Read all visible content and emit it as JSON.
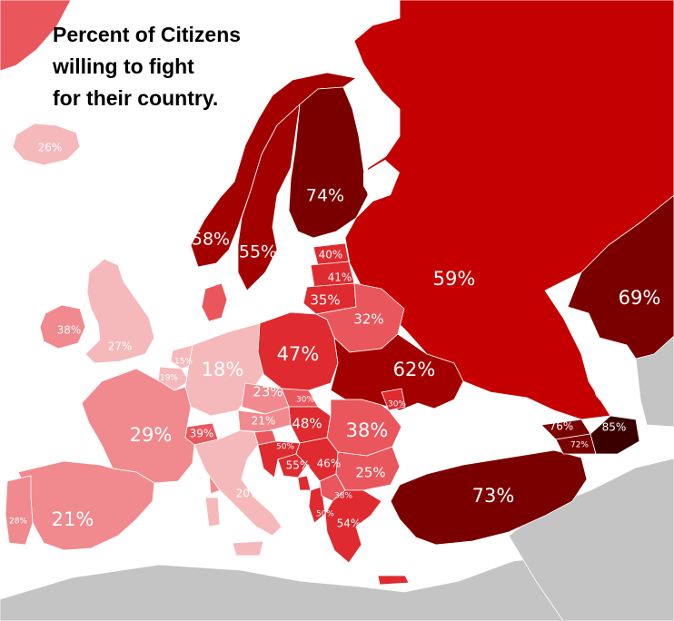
{
  "title_lines": [
    "Percent of Citizens",
    "willing to fight",
    "for their country."
  ],
  "colors": {
    "sea": "#ffffff",
    "no_data": "#c4c4c4",
    "border": "#ffffff",
    "label": "#ffffff",
    "title": "#000000"
  },
  "scale_colors": {
    "very_low": "#f6b9bb",
    "low": "#f08a8e",
    "mid_low": "#e9575d",
    "mid": "#df2a2f",
    "high": "#c40000",
    "very_high": "#a30000",
    "highest": "#7a0000",
    "extreme": "#3a0000"
  },
  "regions": [
    {
      "label": "26%"
    },
    {
      "label": "38%"
    },
    {
      "label": "27%"
    },
    {
      "label": "29%"
    },
    {
      "label": "28%"
    },
    {
      "label": "21%"
    },
    {
      "label": "15%"
    },
    {
      "label": "19%"
    },
    {
      "label": "18%"
    },
    {
      "label": "39%"
    },
    {
      "label": "21%"
    },
    {
      "label": "23%"
    },
    {
      "label": "20%"
    },
    {
      "label": "58%"
    },
    {
      "label": "55%"
    },
    {
      "label": "74%"
    },
    {
      "label": "40%"
    },
    {
      "label": "41%"
    },
    {
      "label": "35%"
    },
    {
      "label": "32%"
    },
    {
      "label": "47%"
    },
    {
      "label": "30%"
    },
    {
      "label": "48%"
    },
    {
      "label": "30%"
    },
    {
      "label": "62%"
    },
    {
      "label": "38%"
    },
    {
      "label": "50%"
    },
    {
      "label": "55%"
    },
    {
      "label": "46%"
    },
    {
      "label": "25%"
    },
    {
      "label": "38%"
    },
    {
      "label": "50%"
    },
    {
      "label": "54%"
    },
    {
      "label": "59%"
    },
    {
      "label": "69%"
    },
    {
      "label": "73%"
    },
    {
      "label": "76%"
    },
    {
      "label": "85%"
    },
    {
      "label": "72%"
    }
  ]
}
